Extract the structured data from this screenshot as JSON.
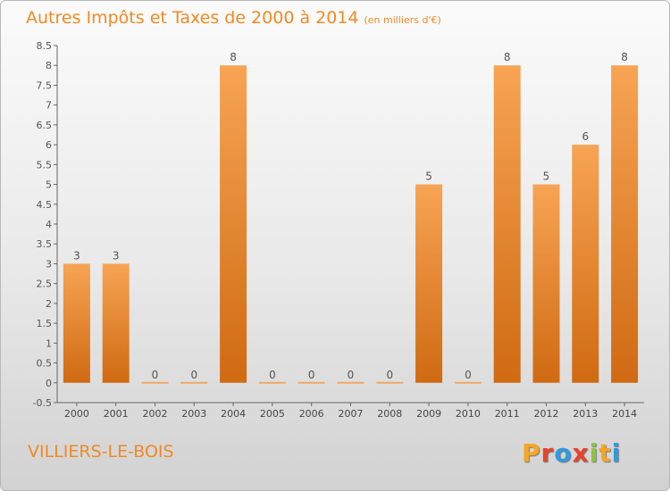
{
  "chart_data": {
    "type": "bar",
    "title": "Autres Impôts et Taxes de 2000 à 2014",
    "subtitle": "(en milliers d'€)",
    "categories": [
      "2000",
      "2001",
      "2002",
      "2003",
      "2004",
      "2005",
      "2006",
      "2007",
      "2008",
      "2009",
      "2010",
      "2011",
      "2012",
      "2013",
      "2014"
    ],
    "values": [
      3,
      3,
      0,
      0,
      8,
      0,
      0,
      0,
      0,
      5,
      0,
      8,
      5,
      6,
      8
    ],
    "y_ticks": [
      "-0.5",
      "0",
      "0.5",
      "1",
      "1.5",
      "2",
      "2.5",
      "3",
      "3.5",
      "4",
      "4.5",
      "5",
      "5.5",
      "6",
      "6.5",
      "7",
      "7.5",
      "8",
      "8.5"
    ],
    "ylim": [
      -0.5,
      8.5
    ],
    "xlabel": "",
    "ylabel": "",
    "grid": false,
    "legend": "none",
    "bar_color": "#f08a24"
  },
  "footer": {
    "town": "VILLIERS-LE-BOIS",
    "logo_letters": [
      "P",
      "r",
      "o",
      "x",
      "i",
      "t",
      "i"
    ],
    "logo_colors": [
      "#f5a623",
      "#e8432e",
      "#2f9ae0",
      "#e8432e",
      "#8cc63f",
      "#f5a623",
      "#2f9ae0"
    ]
  }
}
